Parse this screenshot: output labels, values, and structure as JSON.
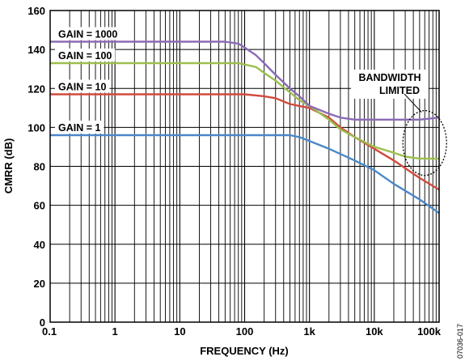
{
  "chart_data": {
    "type": "line",
    "xlabel": "FREQUENCY (Hz)",
    "ylabel": "CMRR (dB)",
    "x_scale": "log",
    "xlim": [
      0.1,
      100000
    ],
    "ylim": [
      0,
      160
    ],
    "grid": true,
    "x_ticks": [
      {
        "value": 0.1,
        "label": "0.1"
      },
      {
        "value": 1,
        "label": "1"
      },
      {
        "value": 10,
        "label": "10"
      },
      {
        "value": 100,
        "label": "100"
      },
      {
        "value": 1000,
        "label": "1k"
      },
      {
        "value": 10000,
        "label": "10k"
      },
      {
        "value": 100000,
        "label": "100k"
      }
    ],
    "y_ticks": [
      0,
      20,
      40,
      60,
      80,
      100,
      120,
      140,
      160
    ],
    "series": [
      {
        "name": "GAIN = 1000",
        "color": "#8B6BB5",
        "x": [
          0.1,
          1,
          10,
          50,
          80,
          100,
          150,
          200,
          300,
          500,
          700,
          1000,
          2000,
          3000,
          5000,
          10000,
          20000,
          50000,
          100000
        ],
        "y": [
          144,
          144,
          144,
          144,
          143,
          141,
          137,
          133,
          127,
          120,
          116,
          111,
          107,
          105,
          104,
          104,
          104,
          104,
          105
        ]
      },
      {
        "name": "GAIN = 100",
        "color": "#9CBF4E",
        "x": [
          0.1,
          1,
          10,
          80,
          150,
          200,
          300,
          500,
          700,
          1000,
          2000,
          3000,
          5000,
          10000,
          20000,
          30000,
          50000,
          100000
        ],
        "y": [
          133,
          133,
          133,
          133,
          131,
          128,
          124,
          118,
          114,
          111,
          104,
          99,
          95,
          90,
          87,
          85,
          84,
          84
        ]
      },
      {
        "name": "GAIN = 10",
        "color": "#D14A3C",
        "x": [
          0.1,
          1,
          10,
          100,
          200,
          300,
          500,
          700,
          1000,
          2000,
          3000,
          5000,
          10000,
          20000,
          50000,
          100000
        ],
        "y": [
          117,
          117,
          117,
          117,
          116,
          115,
          112,
          111,
          110,
          105,
          100,
          95,
          89,
          83,
          74,
          68
        ]
      },
      {
        "name": "GAIN = 1",
        "color": "#4A88C8",
        "x": [
          0.1,
          1,
          10,
          100,
          500,
          700,
          1000,
          2000,
          5000,
          10000,
          20000,
          50000,
          100000
        ],
        "y": [
          96,
          96,
          96,
          96,
          96,
          95,
          93,
          89,
          83,
          78,
          71,
          63,
          56
        ]
      }
    ],
    "annotations": [
      {
        "text_lines": [
          "BANDWIDTH",
          "LIMITED"
        ]
      }
    ],
    "figure_id": "07036-017"
  }
}
